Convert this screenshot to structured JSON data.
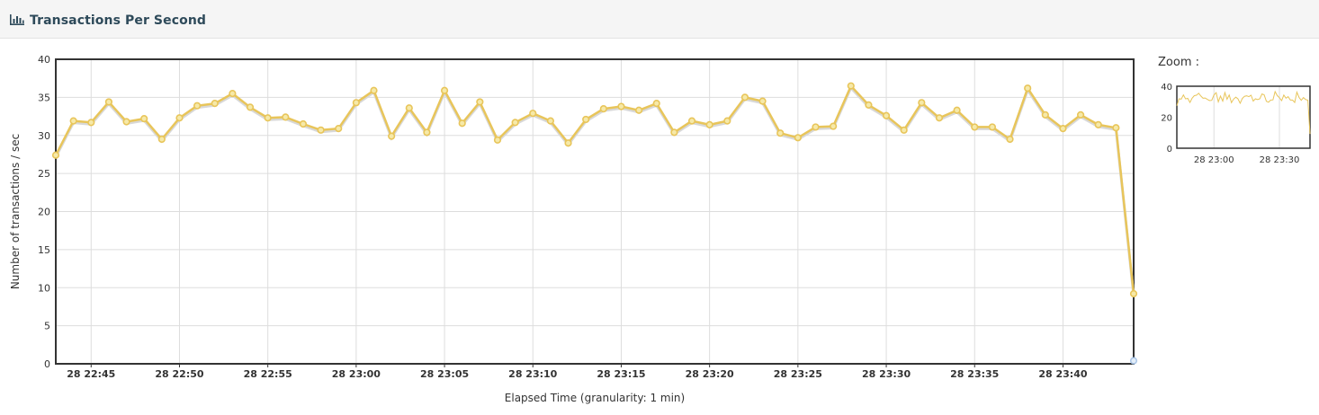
{
  "panel": {
    "title": "Transactions Per Second",
    "icon": "bar-chart-icon"
  },
  "zoom": {
    "label": "Zoom :",
    "yticks": [
      0,
      20,
      40
    ],
    "xticks": [
      "28 23:00",
      "28 23:30"
    ]
  },
  "colors": {
    "series": "#e8c55a",
    "series_shadow": "#d8d8d8",
    "point_fill": "#f6e9a8",
    "axis": "#333333",
    "grid": "#dddddd",
    "secondary_point": "#a9c6e8"
  },
  "chart_data": {
    "type": "line",
    "title": "",
    "xlabel": "Elapsed Time (granularity: 1 min)",
    "ylabel": "Number of transactions / sec",
    "ylim": [
      0,
      40
    ],
    "yticks": [
      0,
      5,
      10,
      15,
      20,
      25,
      30,
      35,
      40
    ],
    "xlim": [
      "28 22:43",
      "28 23:44"
    ],
    "xticks": [
      "28 22:45",
      "28 22:50",
      "28 22:55",
      "28 23:00",
      "28 23:05",
      "28 23:10",
      "28 23:15",
      "28 23:20",
      "28 23:25",
      "28 23:30",
      "28 23:35",
      "28 23:40"
    ],
    "grid": true,
    "series": [
      {
        "values": [
          27.4,
          31.9,
          31.7,
          34.4,
          31.8,
          32.2,
          29.5,
          32.3,
          33.9,
          34.2,
          35.5,
          33.7,
          32.3,
          32.4,
          31.5,
          30.7,
          30.9,
          34.3,
          35.9,
          29.9,
          33.6,
          30.4,
          35.9,
          31.6,
          34.4,
          29.4,
          31.7,
          32.9,
          31.9,
          29.0,
          32.1,
          33.5,
          33.8,
          33.3,
          34.2,
          30.4,
          31.9,
          31.4,
          31.9,
          35.0,
          34.5,
          30.3,
          29.7,
          31.1,
          31.2,
          36.5,
          34.0,
          32.6,
          30.7,
          34.3,
          32.3,
          33.3,
          31.1,
          31.1,
          29.5,
          36.2,
          32.7,
          30.9,
          32.7,
          31.4,
          31.0,
          9.2
        ]
      },
      {
        "values": [
          0.4
        ]
      }
    ]
  }
}
